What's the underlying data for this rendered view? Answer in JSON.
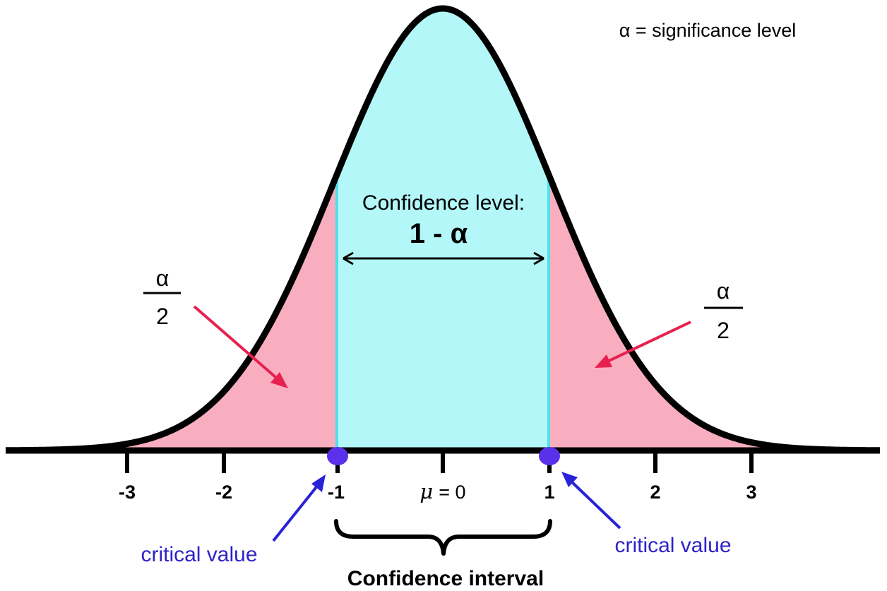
{
  "title": "α = significance level",
  "confidence_label": "Confidence level:",
  "confidence_formula": "1 - α",
  "tail_fraction": {
    "numerator": "α",
    "denominator": "2"
  },
  "axis": {
    "ticks": [
      "-3",
      "-2",
      "-1",
      "1",
      "2",
      "3"
    ],
    "mean_symbol": "μ",
    "mean_value": "= 0"
  },
  "critical_value_label": "critical value",
  "confidence_interval_label": "Confidence interval",
  "colors": {
    "center_region": "#b3f7f8",
    "tail_region": "#f9aec0",
    "curve": "#000000",
    "critical_point": "#5a30ea",
    "tail_arrow": "#e8204f",
    "critical_arrow": "#2a22d8",
    "critical_text": "#2f22c8"
  },
  "critical_z": [
    -1,
    1
  ]
}
